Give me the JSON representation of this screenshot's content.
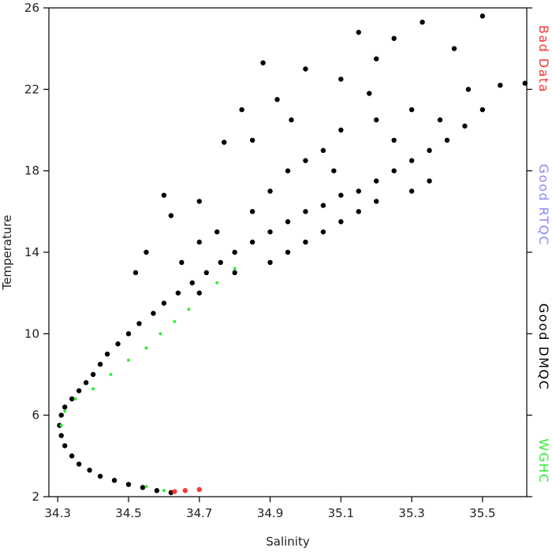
{
  "chart_data": {
    "type": "scatter",
    "x_label": "Salinity",
    "y_label": "Temperature",
    "xlim": [
      34.275,
      35.625
    ],
    "ylim": [
      2,
      26
    ],
    "xticks": [
      34.3,
      34.5,
      34.7,
      34.9,
      35.1,
      35.3,
      35.5
    ],
    "yticks": [
      2,
      6,
      10,
      14,
      18,
      22,
      26
    ],
    "legend": "right",
    "series": [
      {
        "name": "Bad Data",
        "color": "#ff3333",
        "x": [
          34.63,
          34.66,
          34.7
        ],
        "values": [
          2.25,
          2.3,
          2.35
        ]
      },
      {
        "name": "Good RTQC",
        "color": "#8888ff",
        "x": [],
        "values": []
      },
      {
        "name": "Good DMQC",
        "color": "#000000",
        "x": [
          34.62,
          34.58,
          34.54,
          34.5,
          34.46,
          34.42,
          34.39,
          34.36,
          34.34,
          34.32,
          34.31,
          34.305,
          34.31,
          34.32,
          34.34,
          34.36,
          34.38,
          34.4,
          34.42,
          34.44,
          34.47,
          34.5,
          34.53,
          34.57,
          34.6,
          34.64,
          34.68,
          34.72,
          34.76,
          34.8,
          34.85,
          34.9,
          34.95,
          35.0,
          35.05,
          35.1,
          35.15,
          35.2,
          35.25,
          35.3,
          35.35,
          35.4,
          35.45,
          34.65,
          34.7,
          34.75,
          34.7,
          34.8,
          34.85,
          34.9,
          34.95,
          35.0,
          35.05,
          35.1,
          35.15,
          35.2,
          35.3,
          35.35,
          34.9,
          34.95,
          35.0,
          35.05,
          35.1,
          35.2,
          35.3,
          34.85,
          34.82,
          34.92,
          35.0,
          35.1,
          35.2,
          35.25,
          35.33,
          35.5,
          35.55,
          35.62,
          35.42,
          35.46,
          35.5,
          35.15,
          34.77,
          34.6,
          34.55,
          34.52,
          34.62,
          34.7,
          34.88,
          35.08,
          35.25,
          35.38,
          34.96,
          35.18
        ],
        "values": [
          2.2,
          2.3,
          2.45,
          2.6,
          2.8,
          3.0,
          3.3,
          3.6,
          4.0,
          4.5,
          5.0,
          5.5,
          6.0,
          6.4,
          6.8,
          7.2,
          7.6,
          8.0,
          8.5,
          9.0,
          9.5,
          10.0,
          10.5,
          11.0,
          11.5,
          12.0,
          12.5,
          13.0,
          13.5,
          14.0,
          14.5,
          15.0,
          15.5,
          16.0,
          16.3,
          16.8,
          17.0,
          17.5,
          18.0,
          18.5,
          19.0,
          19.5,
          20.2,
          13.5,
          14.5,
          15.0,
          12.0,
          13.0,
          16.0,
          13.5,
          14.0,
          14.5,
          15.0,
          15.5,
          16.0,
          16.5,
          17.0,
          17.5,
          17.0,
          18.0,
          18.5,
          19.0,
          20.0,
          20.5,
          21.0,
          19.5,
          21.0,
          21.5,
          23.0,
          22.5,
          23.5,
          24.5,
          25.3,
          25.6,
          22.2,
          22.3,
          24.0,
          22.0,
          21.0,
          24.8,
          19.4,
          16.8,
          14.0,
          13.0,
          15.8,
          16.5,
          23.3,
          18.0,
          19.5,
          20.5,
          20.5,
          21.8
        ]
      },
      {
        "name": "WGHC",
        "color": "#33ee33",
        "x": [
          34.31,
          34.32,
          34.35,
          34.4,
          34.45,
          34.5,
          34.55,
          34.59,
          34.63,
          34.67,
          34.75,
          34.8,
          34.55,
          34.6
        ],
        "values": [
          5.5,
          6.2,
          6.8,
          7.3,
          8.0,
          8.7,
          9.3,
          10.0,
          10.6,
          11.2,
          12.5,
          13.2,
          2.5,
          2.3
        ]
      }
    ]
  }
}
